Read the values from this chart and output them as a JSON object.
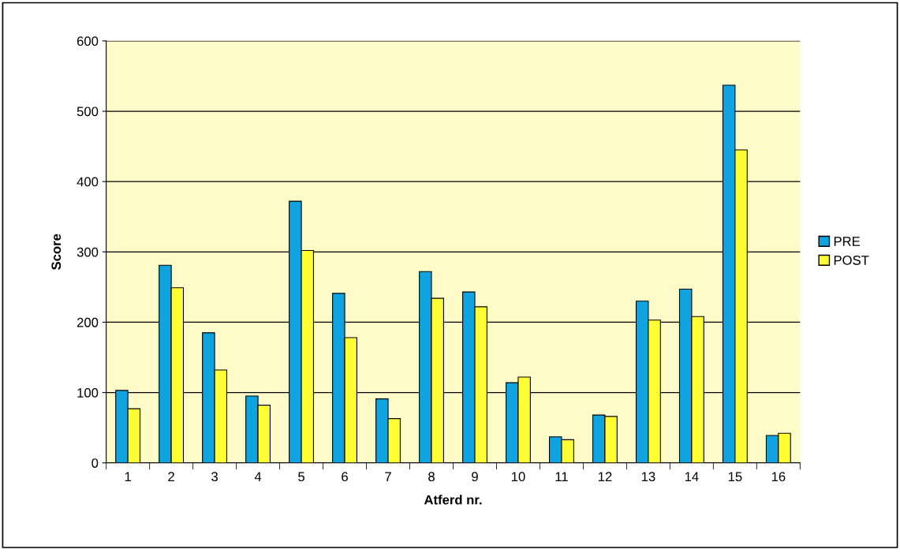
{
  "chart_data": {
    "type": "bar",
    "xlabel": "Atferd nr.",
    "ylabel": "Score",
    "categories": [
      "1",
      "2",
      "3",
      "4",
      "5",
      "6",
      "7",
      "8",
      "9",
      "10",
      "11",
      "12",
      "13",
      "14",
      "15",
      "16"
    ],
    "series": [
      {
        "name": "PRE",
        "color": "#0fa3e0",
        "values": [
          103,
          281,
          185,
          95,
          372,
          241,
          91,
          272,
          243,
          114,
          37,
          68,
          230,
          247,
          537,
          39
        ]
      },
      {
        "name": "POST",
        "color": "#ffff33",
        "values": [
          77,
          249,
          132,
          82,
          302,
          178,
          63,
          234,
          222,
          122,
          33,
          66,
          203,
          208,
          445,
          42
        ]
      }
    ],
    "ylim": [
      0,
      600
    ],
    "yticks": [
      0,
      100,
      200,
      300,
      400,
      500,
      600
    ],
    "grid": "y",
    "legend": "right"
  }
}
